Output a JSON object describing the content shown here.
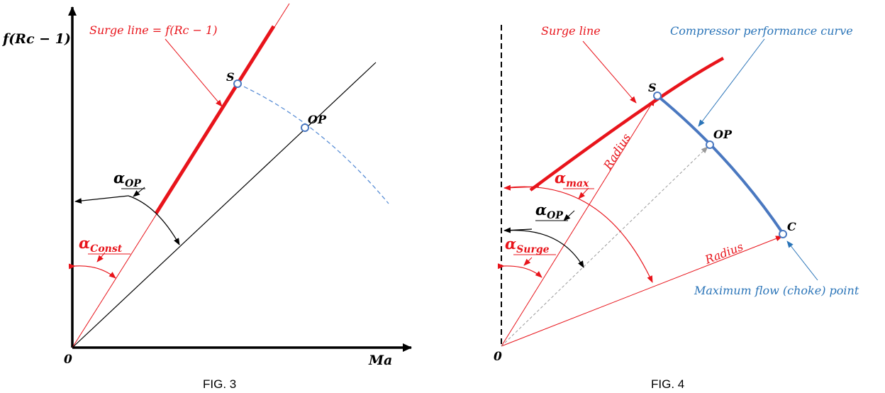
{
  "colors": {
    "black": "#000000",
    "red": "#e8141b",
    "blue": "#4a78c0",
    "label_blue": "#2a74b8",
    "dashed_blue": "#5b8fd6",
    "gray": "#9a9a9a"
  },
  "fig3": {
    "caption": "FIG. 3",
    "y_axis_label": "f(Rc − 1)",
    "x_axis_label": "Ma",
    "origin_label": "0",
    "surge_label": "Surge line = f(Rc − 1)",
    "point_s": "S",
    "point_op": "OP",
    "alpha_op_main": "α",
    "alpha_op_sub": "OP",
    "alpha_const_main": "α",
    "alpha_const_sub": "Const"
  },
  "fig4": {
    "caption": "FIG. 4",
    "origin_label": "0",
    "surge_label": "Surge line",
    "perf_label": "Compressor performance curve",
    "choke_label": "Maximum flow (choke) point",
    "point_s": "S",
    "point_op": "OP",
    "point_c": "C",
    "radius_upper": "Radius",
    "radius_lower": "Radius",
    "alpha_max_main": "α",
    "alpha_max_sub": "max",
    "alpha_op_main": "α",
    "alpha_op_sub": "OP",
    "alpha_surge_main": "α",
    "alpha_surge_sub": "Surge"
  }
}
